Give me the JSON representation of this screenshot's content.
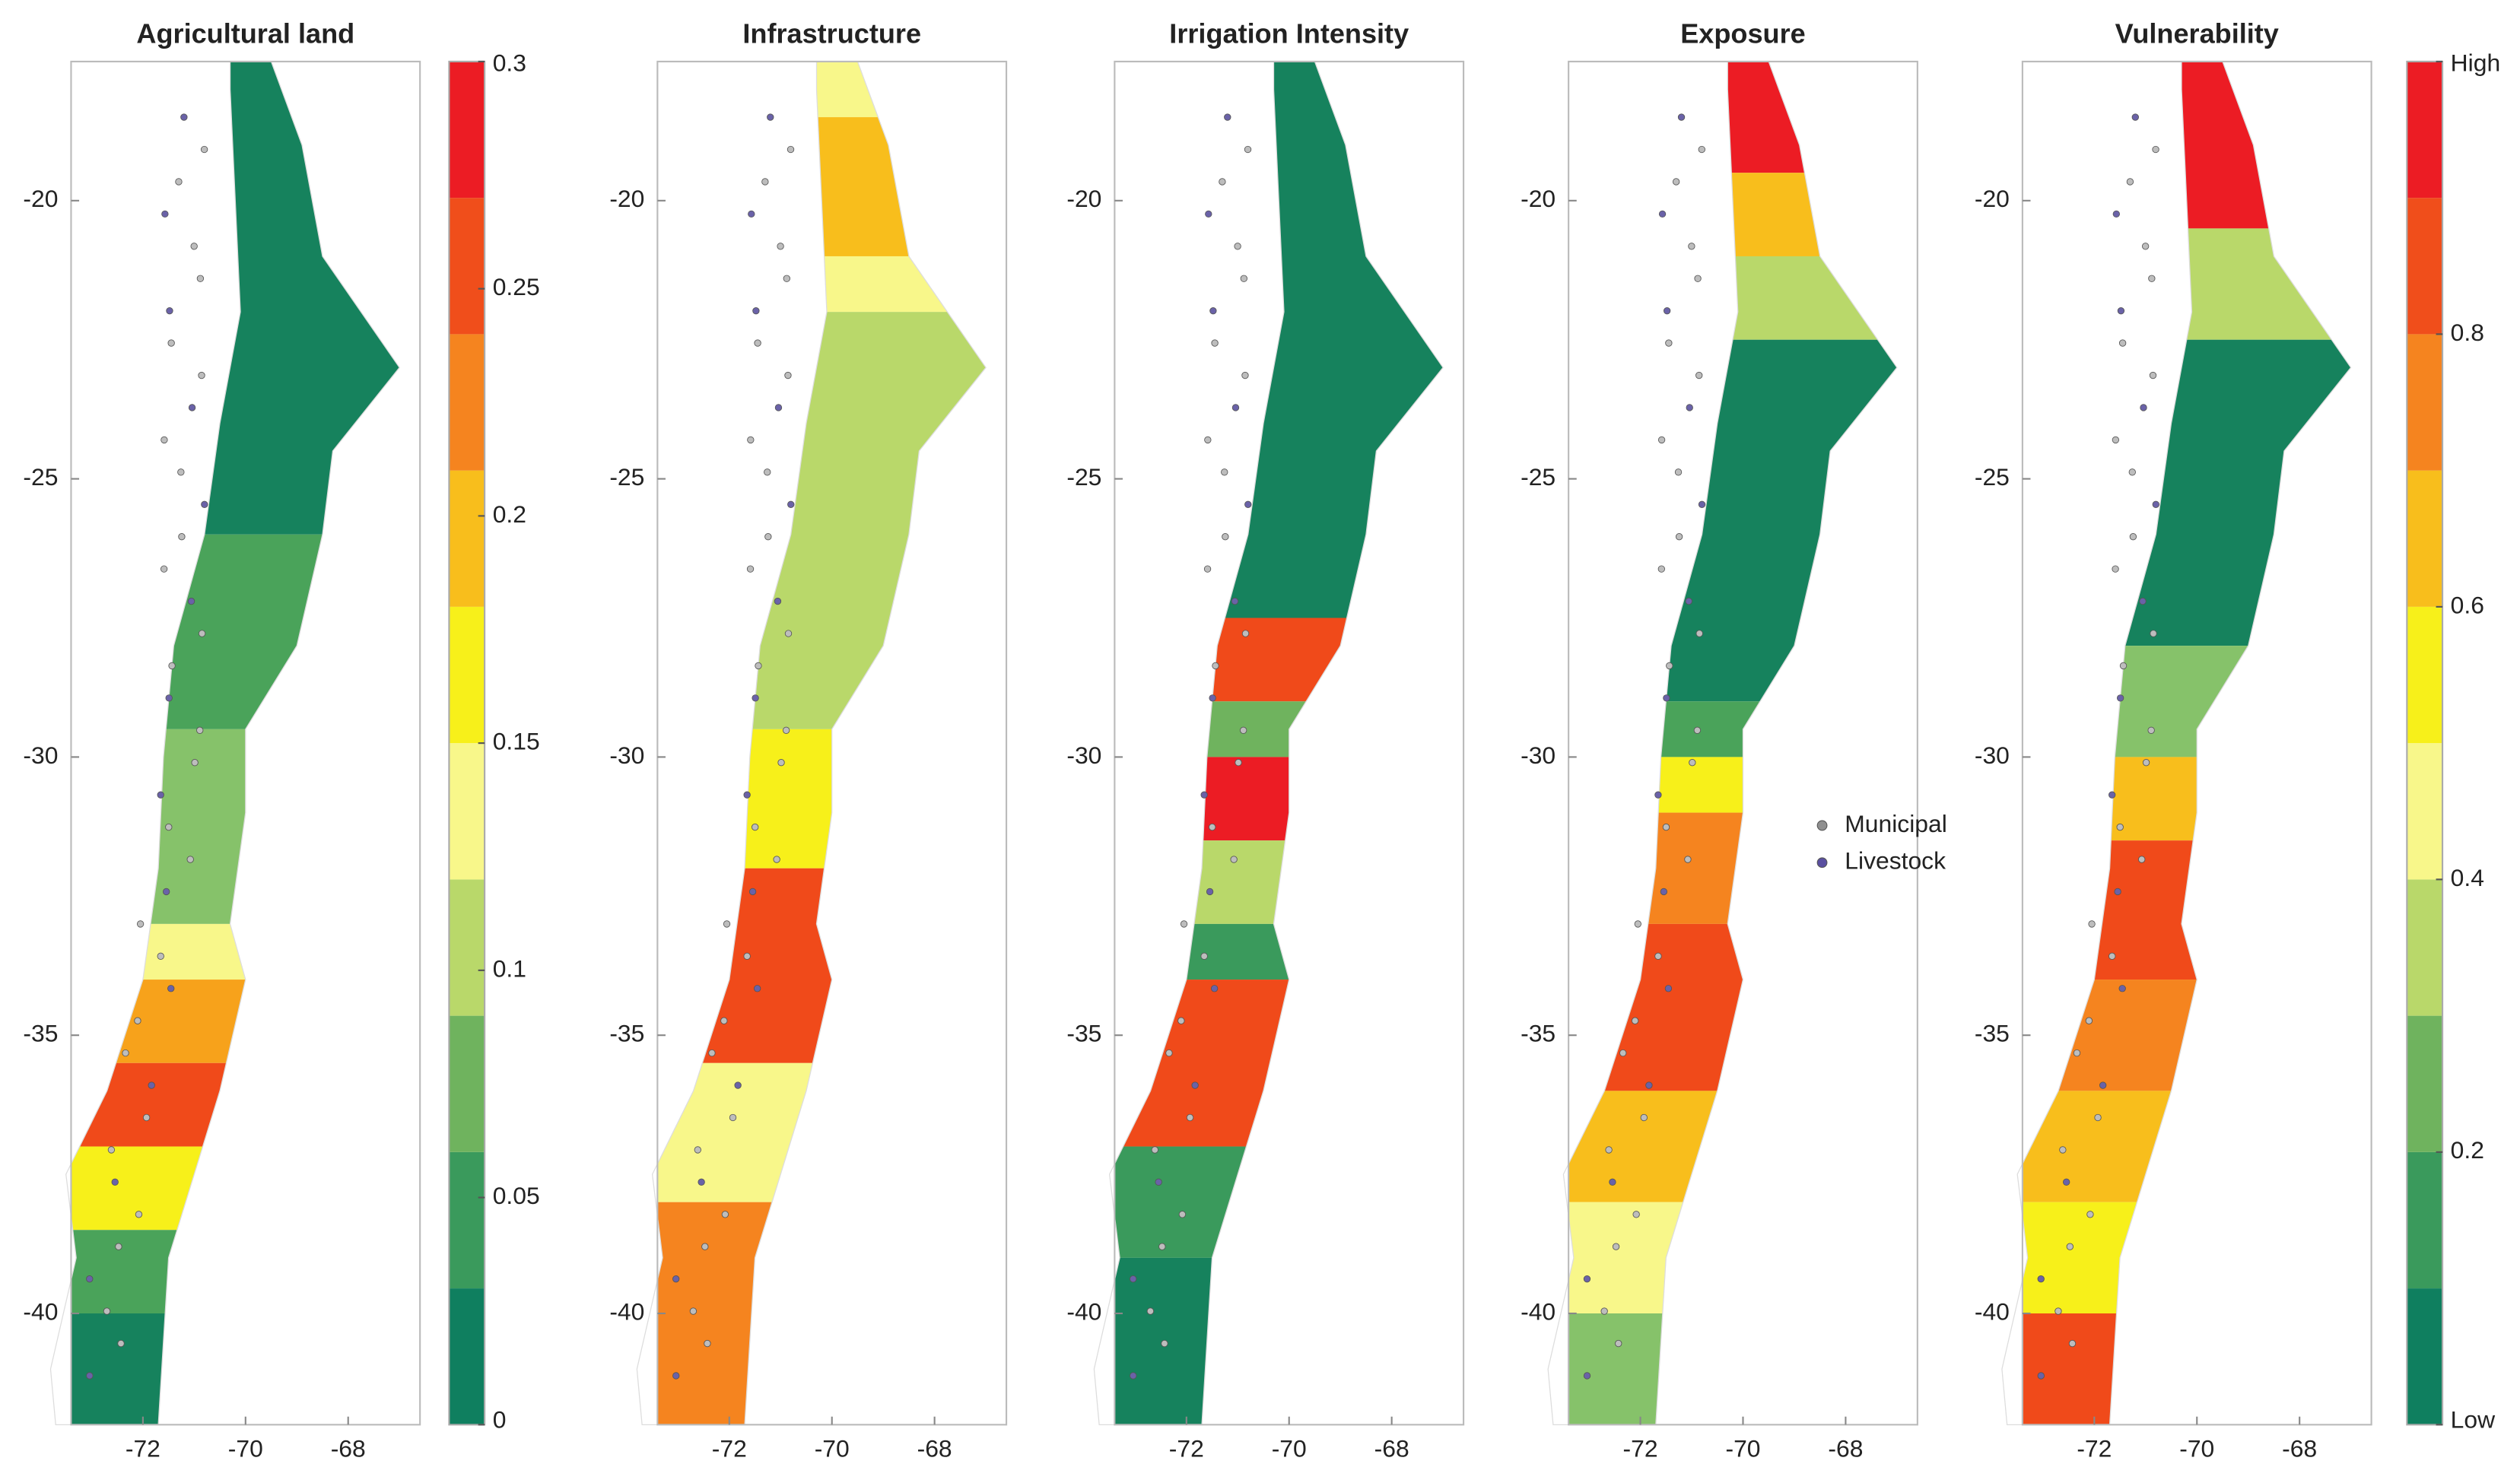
{
  "panels": [
    {
      "title": "Agricultural land",
      "xlim": [
        -73.4,
        -66.6
      ],
      "ylim": [
        -42,
        -17.5
      ],
      "xticks": [
        -72,
        -70,
        -68
      ],
      "yticks": [
        -20,
        -25,
        -30,
        -35,
        -40
      ]
    },
    {
      "title": "Infrastructure",
      "xlim": [
        -73.4,
        -66.6
      ],
      "ylim": [
        -42,
        -17.5
      ],
      "xticks": [
        -72,
        -70,
        -68
      ],
      "yticks": [
        -20,
        -25,
        -30,
        -35,
        -40
      ]
    },
    {
      "title": "Irrigation Intensity",
      "xlim": [
        -73.4,
        -66.6
      ],
      "ylim": [
        -42,
        -17.5
      ],
      "xticks": [
        -72,
        -70,
        -68
      ],
      "yticks": [
        -20,
        -25,
        -30,
        -35,
        -40
      ]
    },
    {
      "title": "Exposure",
      "xlim": [
        -73.4,
        -66.6
      ],
      "ylim": [
        -42,
        -17.5
      ],
      "xticks": [
        -72,
        -70,
        -68
      ],
      "yticks": [
        -20,
        -25,
        -30,
        -35,
        -40
      ]
    },
    {
      "title": "Vulnerability",
      "xlim": [
        -73.4,
        -66.6
      ],
      "ylim": [
        -42,
        -17.5
      ],
      "xticks": [
        -72,
        -70,
        -68
      ],
      "yticks": [
        -20,
        -25,
        -30,
        -35,
        -40
      ]
    }
  ],
  "colorbars": [
    {
      "range": [
        0,
        0.3
      ],
      "ticks": [
        0,
        0.05,
        0.1,
        0.15,
        0.2,
        0.25,
        0.3
      ],
      "colors": [
        "#0f7f5f",
        "#3a9a5c",
        "#6fb35e",
        "#b9d86a",
        "#f8f78a",
        "#f7f01a",
        "#f8be1c",
        "#f5841f",
        "#f04e1b",
        "#ec1c24"
      ]
    },
    {
      "range": [
        0,
        1
      ],
      "ticks": [
        {
          "value": 0,
          "label": "Low"
        },
        0.2,
        0.4,
        0.6,
        0.8,
        {
          "value": 1,
          "label": "High"
        }
      ],
      "colors": [
        "#0f7f5f",
        "#3a9a5c",
        "#6fb35e",
        "#b9d86a",
        "#f8f78a",
        "#f7f01a",
        "#f8be1c",
        "#f5841f",
        "#f04e1b",
        "#ec1c24"
      ]
    }
  ],
  "legend": [
    {
      "name": "Municipal",
      "color": "#8f8f8f"
    },
    {
      "name": "Livestock",
      "color": "#5a4fa0"
    }
  ]
}
